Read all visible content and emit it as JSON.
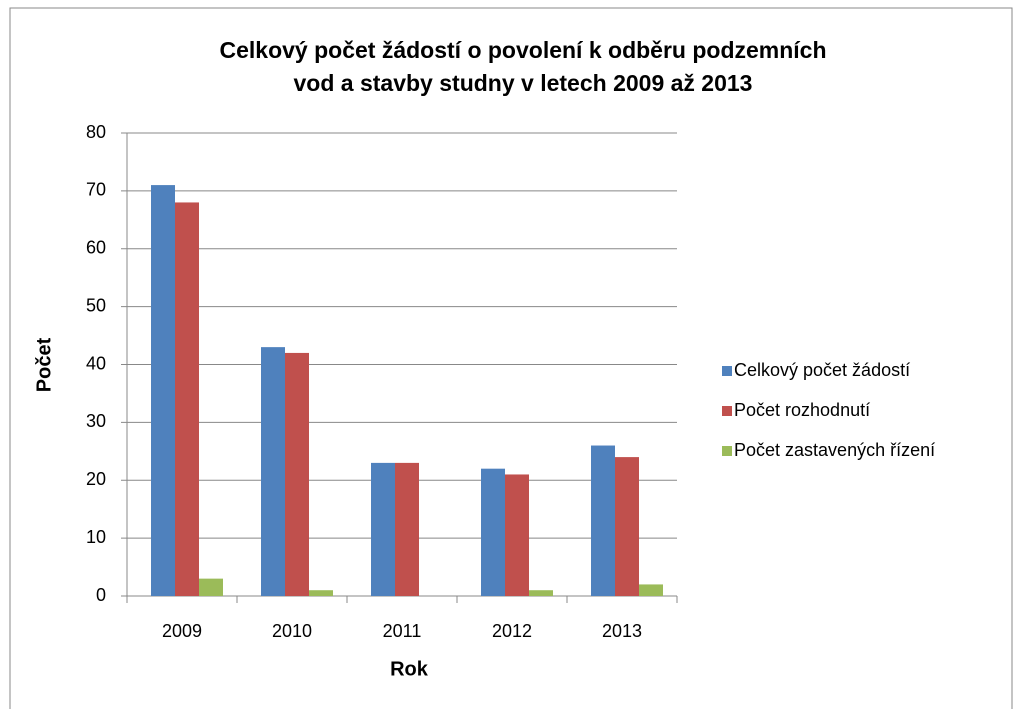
{
  "chart_data": {
    "type": "bar",
    "title": [
      "Celkový počet žádostí o povolení k odběru podzemních",
      "vod a stavby studny v letech 2009 až 2013"
    ],
    "x_label": "Rok",
    "y_label": "Počet",
    "categories": [
      "2009",
      "2010",
      "2011",
      "2012",
      "2013"
    ],
    "series": [
      {
        "name": "Celkový počet žádostí",
        "color": "#4f81bd",
        "values": [
          71,
          43,
          23,
          22,
          26
        ]
      },
      {
        "name": "Počet rozhodnutí",
        "color": "#c0504d",
        "values": [
          68,
          42,
          23,
          21,
          24
        ]
      },
      {
        "name": "Počet zastavených řízení",
        "color": "#9bbb59",
        "values": [
          3,
          1,
          0,
          1,
          2
        ]
      }
    ],
    "ylim": [
      0,
      80
    ],
    "yticks": [
      0,
      10,
      20,
      30,
      40,
      50,
      60,
      70,
      80
    ],
    "grid": true,
    "legend": "right"
  }
}
